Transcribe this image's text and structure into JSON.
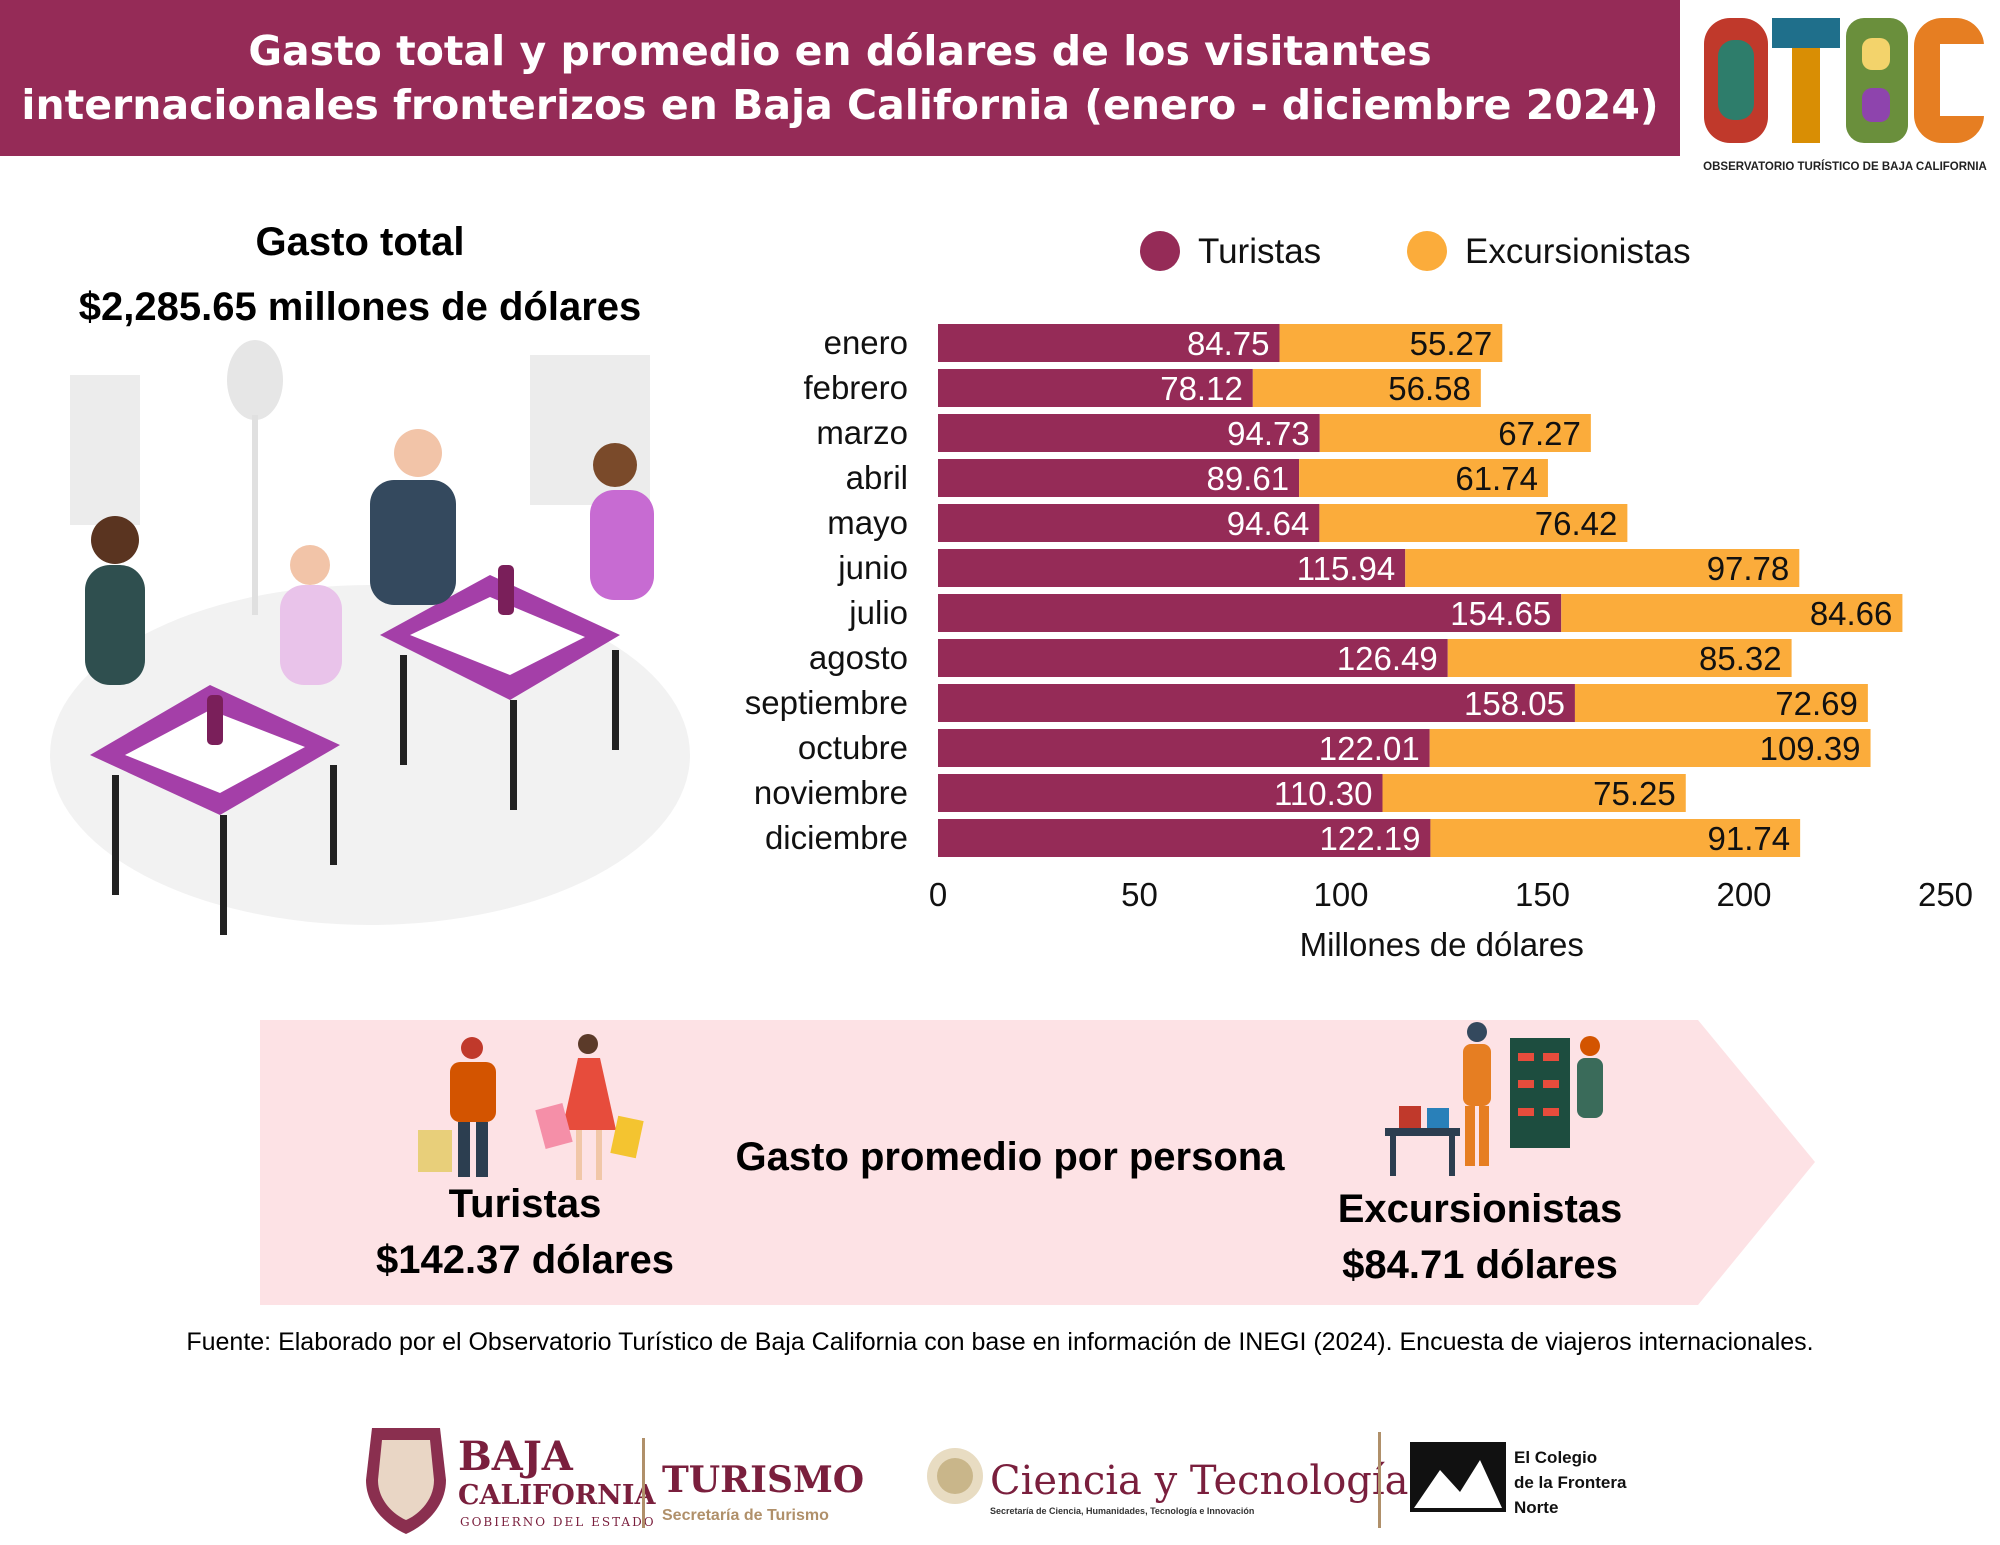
{
  "header": {
    "title_line1": "Gasto total y promedio en dólares de los visitantes",
    "title_line2": "internacionales fronterizos en Baja California (enero - diciembre 2024)"
  },
  "otbc_logo": {
    "letters": "OTBC",
    "caption": "OBSERVATORIO TURÍSTICO DE BAJA CALIFORNIA"
  },
  "total": {
    "title": "Gasto total",
    "value": "$2,285.65 millones de dólares"
  },
  "chart_data": {
    "type": "bar",
    "orientation": "horizontal",
    "stacked": true,
    "categories": [
      "enero",
      "febrero",
      "marzo",
      "abril",
      "mayo",
      "junio",
      "julio",
      "agosto",
      "septiembre",
      "octubre",
      "noviembre",
      "diciembre"
    ],
    "series": [
      {
        "name": "Turistas",
        "color": "#952b57",
        "values": [
          84.75,
          78.12,
          94.73,
          89.61,
          94.64,
          115.94,
          154.65,
          126.49,
          158.05,
          122.01,
          110.3,
          122.19
        ],
        "labels": [
          "84.75",
          "78.12",
          "94.73",
          "89.61",
          "94.64",
          "115.94",
          "154.65",
          "126.49",
          "158.05",
          "122.01",
          "110.30",
          "122.19"
        ]
      },
      {
        "name": "Excursionistas",
        "color": "#fbac3b",
        "values": [
          55.27,
          56.58,
          67.27,
          61.74,
          76.42,
          97.78,
          84.66,
          85.32,
          72.69,
          109.39,
          75.25,
          91.74
        ],
        "labels": [
          "55.27",
          "56.58",
          "67.27",
          "61.74",
          "76.42",
          "97.78",
          "84.66",
          "85.32",
          "72.69",
          "109.39",
          "75.25",
          "91.74"
        ]
      }
    ],
    "xlabel": "Millones de dólares",
    "xlim": [
      0,
      250
    ],
    "xticks": [
      0,
      50,
      100,
      150,
      200,
      250
    ],
    "legend_position": "top",
    "grid": false
  },
  "average": {
    "title": "Gasto promedio por persona",
    "turistas_label": "Turistas",
    "turistas_value": "$142.37 dólares",
    "excursionistas_label": "Excursionistas",
    "excursionistas_value": "$84.71 dólares",
    "banner_color": "#fde2e5"
  },
  "source": "Fuente: Elaborado por el Observatorio Turístico de Baja California con base en información de INEGI (2024). Encuesta de viajeros internacionales.",
  "footer_logos": {
    "bc_line1": "BAJA",
    "bc_line2": "CALIFORNIA",
    "bc_line3": "GOBIERNO DEL ESTADO",
    "turismo": "TURISMO",
    "turismo_sub": "Secretaría de Turismo",
    "ciencia": "Ciencia y Tecnología",
    "ciencia_sub": "Secretaría de Ciencia, Humanidades, Tecnología e Innovación",
    "colef_line1": "El Colegio",
    "colef_line2": "de la Frontera",
    "colef_line3": "Norte"
  }
}
